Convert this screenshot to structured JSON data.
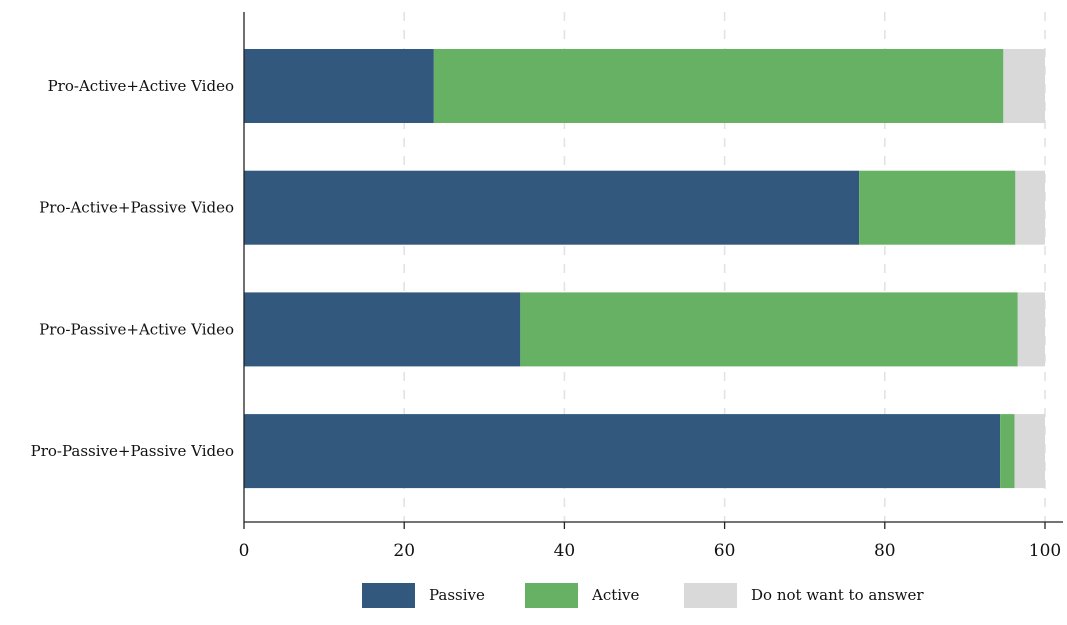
{
  "chart_data": {
    "type": "bar",
    "orientation": "horizontal",
    "stacked": true,
    "categories": [
      "Pro-Active+Active Video",
      "Pro-Active+Passive Video",
      "Pro-Passive+Active Video",
      "Pro-Passive+Passive Video"
    ],
    "series": [
      {
        "name": "Passive",
        "values": [
          23.7,
          76.8,
          34.5,
          94.4
        ]
      },
      {
        "name": "Active",
        "values": [
          71.1,
          19.5,
          62.1,
          1.8
        ]
      },
      {
        "name": "Do not want to answer",
        "values": [
          5.2,
          3.7,
          3.4,
          3.8
        ]
      }
    ],
    "xticks": [
      0,
      20,
      40,
      60,
      80,
      100
    ],
    "xlim": [
      0,
      100
    ],
    "grid": "vertical dashed",
    "legend_position": "bottom",
    "colors": [
      "#33587d",
      "#67b165",
      "#d9d9d9"
    ]
  }
}
